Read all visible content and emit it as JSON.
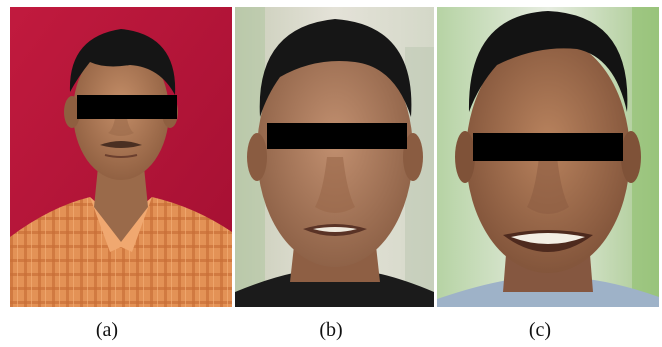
{
  "figure": {
    "panels": [
      {
        "label": "(a)",
        "description_icon": "portrait-photo"
      },
      {
        "label": "(b)",
        "description_icon": "portrait-photo"
      },
      {
        "label": "(c)",
        "description_icon": "portrait-photo"
      }
    ]
  },
  "colors": {
    "panel_a_background": "#c8153c",
    "shirt_orange": "#d98a55",
    "skin": "#a9785a",
    "hair": "#141414",
    "censor_bar": "#000000",
    "panel_b_background": "#d9d9cf",
    "panel_c_background": "#cfe0c6"
  }
}
